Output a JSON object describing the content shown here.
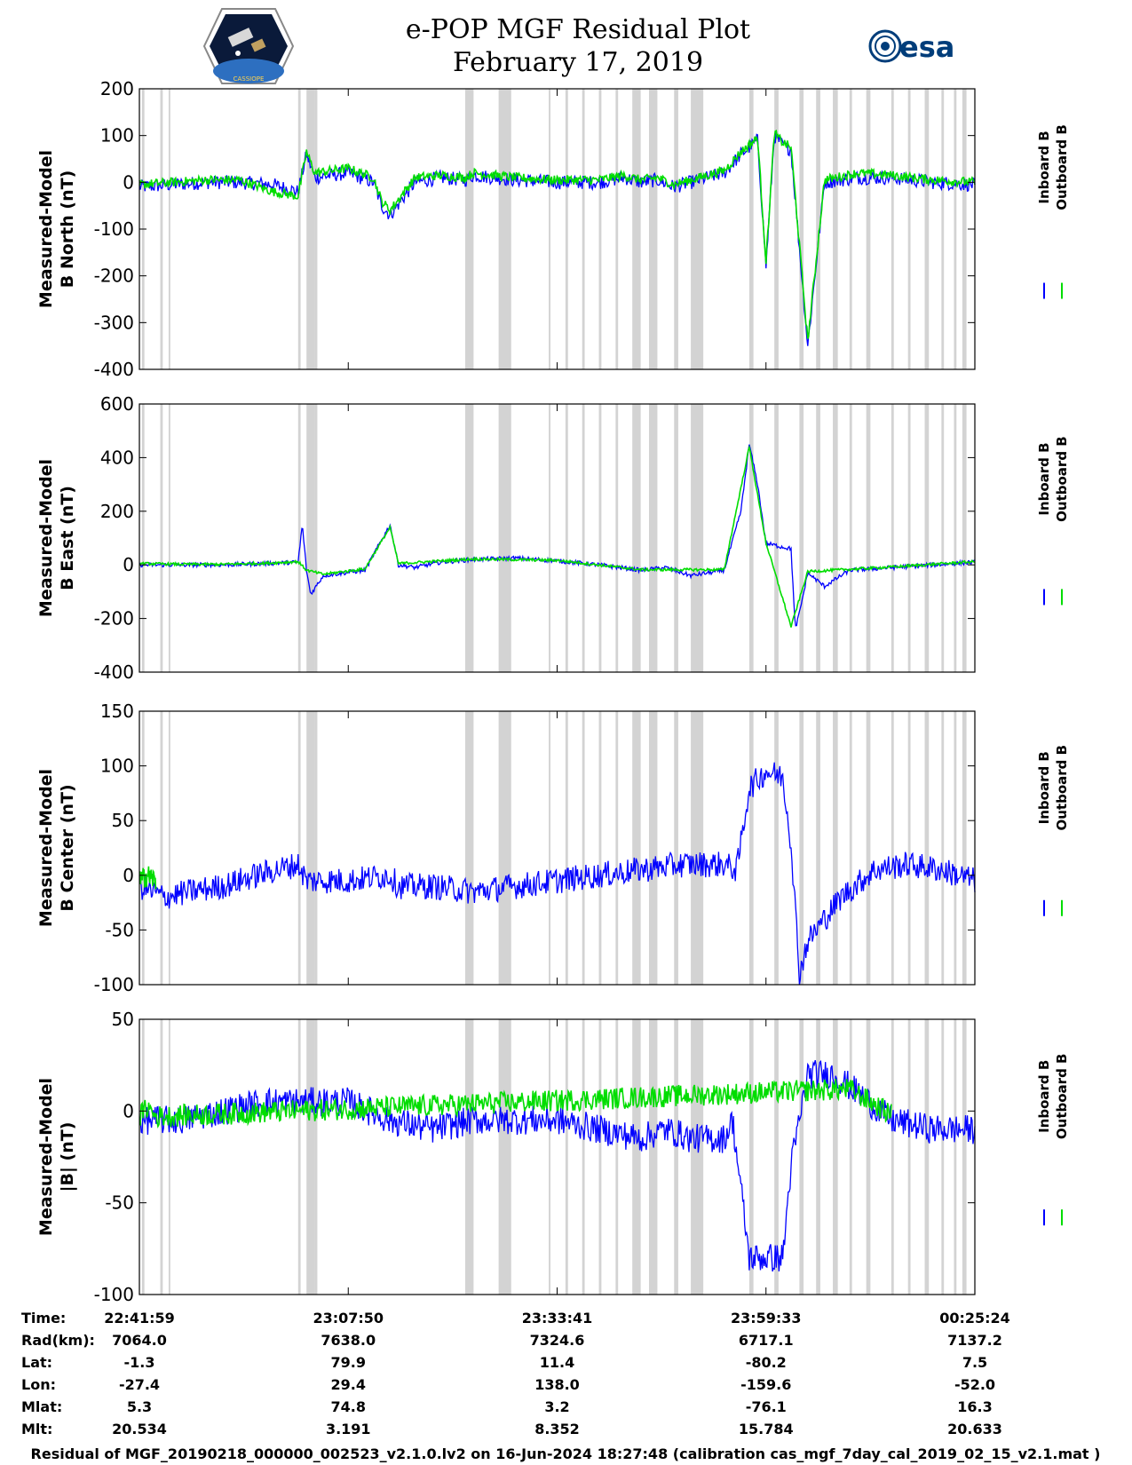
{
  "header": {
    "title_line1": "e-POP MGF Residual Plot",
    "title_line2": "February 17, 2019",
    "left_logo": "cassiope-mission-logo",
    "left_logo_text": "CASSIOPE",
    "right_logo": "esa-logo",
    "right_logo_text": "esa"
  },
  "legend": {
    "inboard_label": "Inboard B",
    "outboard_label": "Outboard B",
    "inboard_color": "#0000ff",
    "outboard_color": "#00dd00"
  },
  "chart_data": [
    {
      "type": "line",
      "ylabel_line1": "Measured-Model",
      "ylabel_line2": "B North (nT)",
      "ylim": [
        -400,
        200
      ],
      "yticks": [
        200,
        100,
        0,
        -100,
        -200,
        -300,
        -400
      ],
      "series": [
        {
          "name": "Inboard B",
          "color": "#0000ff",
          "x": [
            0,
            0.04,
            0.08,
            0.12,
            0.16,
            0.19,
            0.2,
            0.21,
            0.25,
            0.28,
            0.29,
            0.3,
            0.33,
            0.36,
            0.39,
            0.4,
            0.45,
            0.5,
            0.55,
            0.58,
            0.6,
            0.62,
            0.64,
            0.66,
            0.7,
            0.72,
            0.74,
            0.75,
            0.76,
            0.77,
            0.78,
            0.8,
            0.82,
            0.86,
            0.9,
            0.95,
            1.0
          ],
          "y": [
            -10,
            -5,
            0,
            0,
            -5,
            -20,
            60,
            10,
            20,
            0,
            -50,
            -70,
            0,
            10,
            5,
            15,
            5,
            0,
            0,
            10,
            0,
            5,
            -10,
            0,
            20,
            60,
            90,
            -180,
            100,
            80,
            70,
            -350,
            0,
            10,
            10,
            0,
            -5
          ],
          "noise": 15
        },
        {
          "name": "Outboard B",
          "color": "#00dd00",
          "x": [
            0,
            0.04,
            0.08,
            0.12,
            0.16,
            0.19,
            0.2,
            0.21,
            0.25,
            0.28,
            0.29,
            0.3,
            0.33,
            0.36,
            0.39,
            0.4,
            0.45,
            0.5,
            0.55,
            0.58,
            0.6,
            0.62,
            0.64,
            0.66,
            0.7,
            0.72,
            0.74,
            0.75,
            0.76,
            0.77,
            0.78,
            0.8,
            0.82,
            0.86,
            0.9,
            0.95,
            1.0
          ],
          "y": [
            -5,
            0,
            5,
            5,
            -20,
            -30,
            65,
            20,
            30,
            10,
            -40,
            -60,
            10,
            15,
            10,
            20,
            10,
            5,
            5,
            15,
            5,
            10,
            -5,
            5,
            25,
            65,
            95,
            -170,
            105,
            85,
            75,
            -340,
            5,
            20,
            15,
            5,
            0
          ],
          "noise": 10
        }
      ]
    },
    {
      "type": "line",
      "ylabel_line1": "Measured-Model",
      "ylabel_line2": "B East (nT)",
      "ylim": [
        -400,
        600
      ],
      "yticks": [
        600,
        400,
        200,
        0,
        -200,
        -400
      ],
      "series": [
        {
          "name": "Inboard B",
          "color": "#0000ff",
          "x": [
            0,
            0.05,
            0.1,
            0.15,
            0.19,
            0.195,
            0.2,
            0.205,
            0.22,
            0.27,
            0.3,
            0.31,
            0.33,
            0.36,
            0.4,
            0.45,
            0.5,
            0.55,
            0.6,
            0.63,
            0.66,
            0.7,
            0.72,
            0.73,
            0.74,
            0.75,
            0.78,
            0.785,
            0.79,
            0.8,
            0.82,
            0.85,
            0.9,
            0.95,
            1.0
          ],
          "y": [
            0,
            0,
            0,
            5,
            10,
            150,
            -20,
            -110,
            -40,
            -20,
            150,
            0,
            -10,
            10,
            20,
            25,
            15,
            0,
            -20,
            -10,
            -40,
            -20,
            200,
            450,
            300,
            80,
            60,
            -240,
            -180,
            -30,
            -80,
            -20,
            -10,
            0,
            10
          ],
          "noise": 8
        },
        {
          "name": "Outboard B",
          "color": "#00dd00",
          "x": [
            0,
            0.05,
            0.1,
            0.15,
            0.19,
            0.2,
            0.22,
            0.27,
            0.3,
            0.31,
            0.4,
            0.5,
            0.6,
            0.7,
            0.73,
            0.75,
            0.78,
            0.8,
            0.9,
            1.0
          ],
          "y": [
            5,
            2,
            2,
            6,
            12,
            -20,
            -35,
            -15,
            140,
            5,
            22,
            17,
            -18,
            -18,
            440,
            82,
            -230,
            -25,
            -8,
            12
          ],
          "noise": 5
        }
      ]
    },
    {
      "type": "line",
      "ylabel_line1": "Measured-Model",
      "ylabel_line2": "B Center (nT)",
      "ylim": [
        -100,
        150
      ],
      "yticks": [
        150,
        100,
        50,
        0,
        -50,
        -100
      ],
      "series": [
        {
          "name": "Inboard B",
          "color": "#0000ff",
          "x": [
            0,
            0.03,
            0.06,
            0.1,
            0.14,
            0.19,
            0.2,
            0.25,
            0.3,
            0.31,
            0.35,
            0.4,
            0.45,
            0.5,
            0.55,
            0.6,
            0.65,
            0.7,
            0.715,
            0.73,
            0.75,
            0.77,
            0.78,
            0.79,
            0.8,
            0.84,
            0.88,
            0.92,
            0.96,
            1.0
          ],
          "y": [
            -10,
            -20,
            -15,
            -10,
            0,
            10,
            -5,
            -5,
            0,
            -10,
            -10,
            -15,
            -10,
            -5,
            0,
            5,
            10,
            10,
            5,
            80,
            95,
            90,
            30,
            -90,
            -60,
            -20,
            5,
            10,
            5,
            -5
          ],
          "noise": 12
        },
        {
          "name": "Outboard B",
          "color": "#00dd00",
          "x": [
            0,
            0.01,
            0.02
          ],
          "y": [
            -5,
            0,
            -5
          ],
          "noise": 10
        }
      ]
    },
    {
      "type": "line",
      "ylabel_line1": "Measured-Model",
      "ylabel_line2": "|B| (nT)",
      "ylim": [
        -100,
        50
      ],
      "yticks": [
        50,
        0,
        -50,
        -100
      ],
      "series": [
        {
          "name": "Inboard B",
          "color": "#0000ff",
          "x": [
            0,
            0.05,
            0.1,
            0.15,
            0.2,
            0.25,
            0.3,
            0.35,
            0.4,
            0.45,
            0.5,
            0.55,
            0.6,
            0.63,
            0.66,
            0.7,
            0.71,
            0.73,
            0.75,
            0.77,
            0.78,
            0.8,
            0.83,
            0.86,
            0.9,
            0.95,
            1.0
          ],
          "y": [
            -5,
            -5,
            0,
            5,
            5,
            5,
            -5,
            -10,
            -5,
            -5,
            -5,
            -10,
            -15,
            -10,
            -15,
            -15,
            -5,
            -80,
            -80,
            -80,
            -30,
            20,
            20,
            10,
            -5,
            -10,
            -10
          ],
          "noise": 8
        },
        {
          "name": "Outboard B",
          "color": "#00dd00",
          "x": [
            0,
            0.01,
            0.02,
            0.85,
            0.9
          ],
          "y": [
            -3,
            2,
            -3,
            12,
            -2
          ],
          "noise": 6
        }
      ]
    }
  ],
  "x_axis": {
    "tick_positions": [
      0.25,
      0.5,
      0.75
    ],
    "gaps": [
      [
        0.003,
        0.006
      ],
      [
        0.025,
        0.028
      ],
      [
        0.035,
        0.037
      ],
      [
        0.19,
        0.193
      ],
      [
        0.2,
        0.21
      ],
      [
        0.21,
        0.213
      ],
      [
        0.39,
        0.4
      ],
      [
        0.43,
        0.445
      ],
      [
        0.49,
        0.492
      ],
      [
        0.51,
        0.513
      ],
      [
        0.53,
        0.533
      ],
      [
        0.55,
        0.553
      ],
      [
        0.57,
        0.573
      ],
      [
        0.59,
        0.6
      ],
      [
        0.61,
        0.62
      ],
      [
        0.64,
        0.645
      ],
      [
        0.66,
        0.675
      ],
      [
        0.73,
        0.735
      ],
      [
        0.76,
        0.765
      ],
      [
        0.79,
        0.795
      ],
      [
        0.81,
        0.815
      ],
      [
        0.83,
        0.836
      ],
      [
        0.85,
        0.853
      ],
      [
        0.87,
        0.875
      ],
      [
        0.9,
        0.903
      ],
      [
        0.92,
        0.923
      ],
      [
        0.94,
        0.945
      ],
      [
        0.96,
        0.963
      ],
      [
        0.975,
        0.978
      ],
      [
        0.985,
        0.99
      ]
    ]
  },
  "ephemeris": {
    "row_labels": [
      "Time:",
      "Rad(km):",
      "Lat:",
      "Lon:",
      "Mlat:",
      "Mlt:"
    ],
    "columns": [
      [
        "22:41:59",
        "7064.0",
        "-1.3",
        "-27.4",
        "5.3",
        "20.534"
      ],
      [
        "23:07:50",
        "7638.0",
        "79.9",
        "29.4",
        "74.8",
        "3.191"
      ],
      [
        "23:33:41",
        "7324.6",
        "11.4",
        "138.0",
        "3.2",
        "8.352"
      ],
      [
        "23:59:33",
        "6717.1",
        "-80.2",
        "-159.6",
        "-76.1",
        "15.784"
      ],
      [
        "00:25:24",
        "7137.2",
        "7.5",
        "-52.0",
        "16.3",
        "20.633"
      ]
    ]
  },
  "footer": {
    "text": "Residual of MGF_20190218_000000_002523_v2.1.0.lv2 on 16-Jun-2024 18:27:48 (calibration cas_mgf_7day_cal_2019_02_15_v2.1.mat )"
  }
}
